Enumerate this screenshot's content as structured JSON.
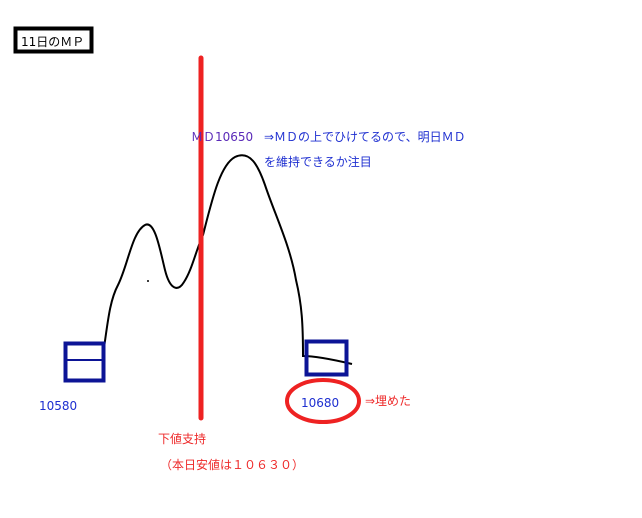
{
  "title": "11日のＭＰ",
  "md_label": "ＭＤ10650",
  "md_comment_line1": "⇒ＭＤの上でひけてるので、明日ＭＤ",
  "md_comment_line2": "を維持できるか注目",
  "left_value": "10580",
  "right_value": "10680",
  "filled_note": "⇒埋めた",
  "support_label": "下値支持",
  "support_note": "（本日安値は１０６３０）",
  "colors": {
    "box": "#0c1496",
    "support_line": "#ee2222",
    "curve": "#000000",
    "text_blue": "#1e2fd0",
    "text_red": "#ee2a2a"
  }
}
